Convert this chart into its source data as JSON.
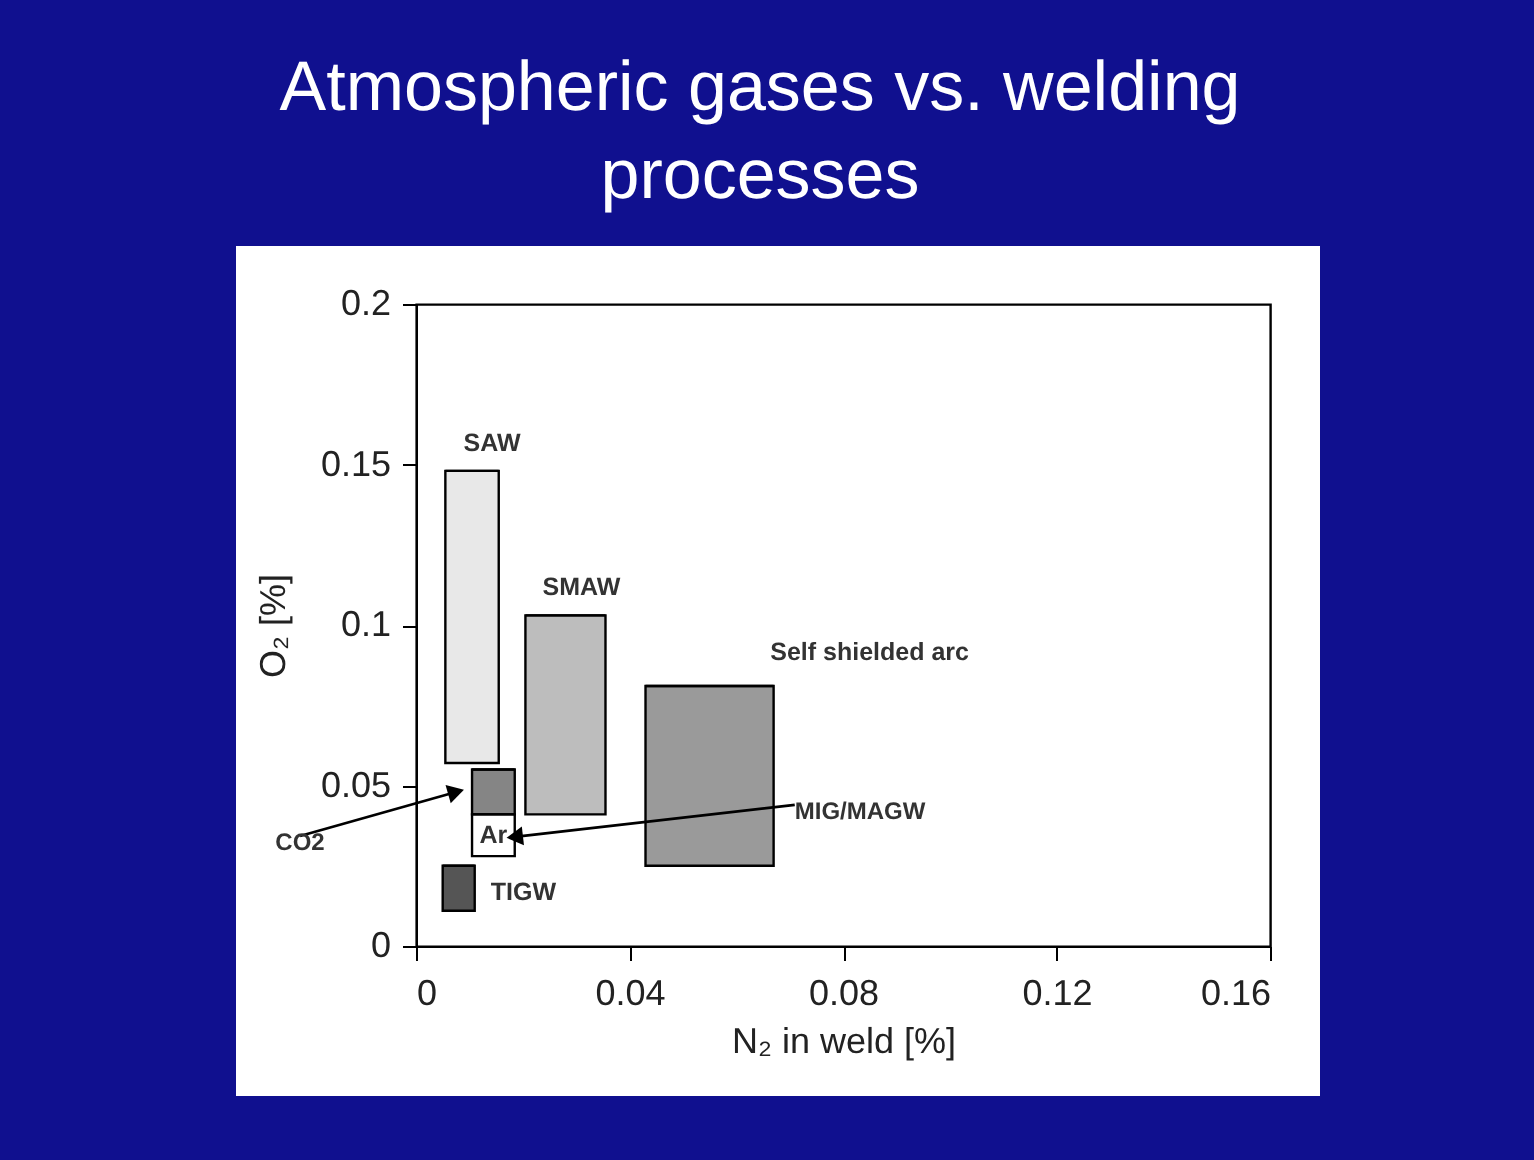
{
  "chart_data": {
    "type": "bar",
    "title": "Atmospheric gases vs. welding processes",
    "xlabel": "N₂ in weld [%]",
    "ylabel": "O₂ [%]",
    "xlim": [
      0,
      0.16
    ],
    "xticks": [
      0,
      0.04,
      0.08,
      0.12,
      0.16
    ],
    "ylim": [
      0,
      0.2
    ],
    "yticks": [
      0,
      0.05,
      0.1,
      0.15,
      0.2
    ],
    "series": [
      {
        "name": "SAW",
        "color": "#e8e8e8",
        "x": [
          0.0105
        ],
        "xerrors": [
          [
            0.0055,
            0.0155
          ]
        ],
        "base": [
          0.057
        ],
        "values": [
          0.091
        ]
      },
      {
        "name": "SMAW",
        "color": "#bdbdbd",
        "x": [
          0.028
        ],
        "xerrors": [
          [
            0.0205,
            0.0355
          ]
        ],
        "base": [
          0.041
        ],
        "values": [
          0.062
        ]
      },
      {
        "name": "Self shielded arc",
        "color": "#9a9a9a",
        "x": [
          0.055
        ],
        "xerrors": [
          [
            0.043,
            0.067
          ]
        ],
        "base": [
          0.025
        ],
        "values": [
          0.056
        ]
      },
      {
        "name": "CO2",
        "color": "#858585",
        "x": [
          0.0145
        ],
        "xerrors": [
          [
            0.0105,
            0.0185
          ]
        ],
        "base": [
          0.041
        ],
        "values": [
          0.014
        ]
      },
      {
        "name": "Ar",
        "color": "#ffffff",
        "x": [
          0.0145
        ],
        "xerrors": [
          [
            0.0105,
            0.0185
          ]
        ],
        "base": [
          0.028
        ],
        "values": [
          0.013
        ]
      },
      {
        "name": "TIGW",
        "color": "#555555",
        "x": [
          0.008
        ],
        "xerrors": [
          [
            0.005,
            0.011
          ]
        ],
        "base": [
          0.011
        ],
        "values": [
          0.014
        ]
      }
    ],
    "annotations": [
      {
        "text": "MIG/MAGW",
        "x": 0.0185,
        "y": 0.034
      }
    ]
  }
}
